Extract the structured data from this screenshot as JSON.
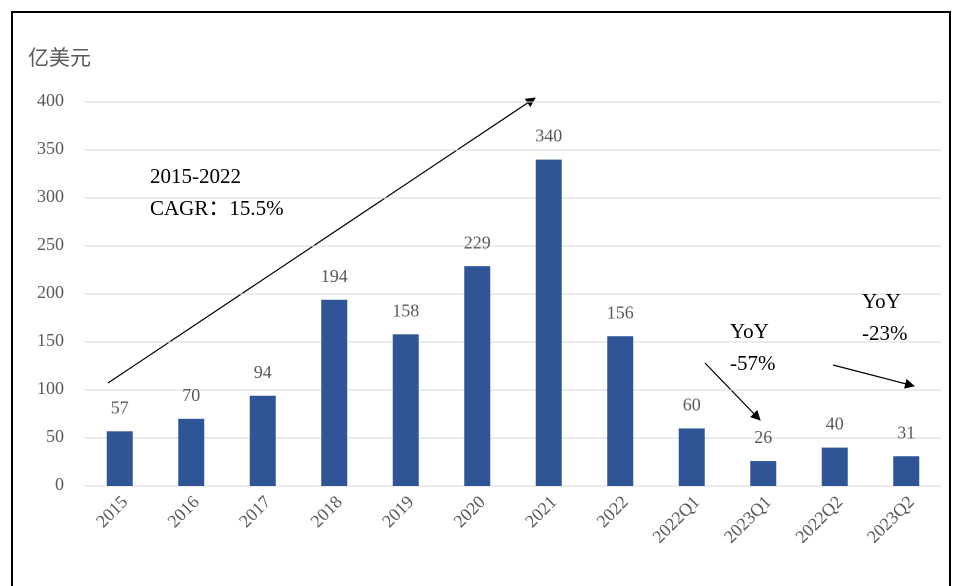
{
  "chart_data": {
    "type": "bar",
    "y_label": "亿美元",
    "categories": [
      "2015",
      "2016",
      "2017",
      "2018",
      "2019",
      "2020",
      "2021",
      "2022",
      "2022Q1",
      "2023Q1",
      "2022Q2",
      "2023Q2"
    ],
    "values": [
      57,
      70,
      94,
      194,
      158,
      229,
      340,
      156,
      60,
      26,
      40,
      31
    ],
    "color": "#2f5597",
    "ylim": [
      0,
      400
    ],
    "yticks": [
      0,
      50,
      100,
      150,
      200,
      250,
      300,
      350,
      400
    ],
    "grid": true,
    "annotations": [
      "2015-2022",
      "CAGR：15.5%",
      "YoY",
      "-57%",
      "YoY",
      "-23%"
    ]
  }
}
